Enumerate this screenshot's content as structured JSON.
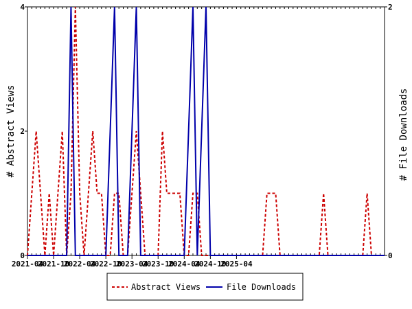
{
  "chart_data": {
    "type": "line",
    "title": "",
    "xlabel": "",
    "ylabel_left": "# Abstract Views",
    "ylabel_right": "# File Downloads",
    "x_start": "2021-04",
    "x_end": "2025-08",
    "x_tick_labels": [
      "2021-04",
      "2021-10",
      "2022-04",
      "2022-10",
      "2023-04",
      "2023-10",
      "2024-04",
      "2024-10",
      "2025-04"
    ],
    "ylim_left": [
      0,
      4
    ],
    "yticks_left": [
      "0",
      "2",
      "4"
    ],
    "ylim_right": [
      0,
      2
    ],
    "yticks_right": [
      "0",
      "2"
    ],
    "legend_position": "bottom-center",
    "series": [
      {
        "name": "Abstract Views",
        "axis": "left",
        "color": "#cc0000",
        "style": "dashed",
        "values": [
          0,
          1,
          2,
          1,
          0,
          1,
          0,
          1,
          2,
          0,
          1,
          4,
          1,
          0,
          1,
          2,
          1,
          1,
          0,
          0,
          1,
          1,
          0,
          0,
          1,
          2,
          1,
          0,
          0,
          0,
          0,
          2,
          1,
          1,
          1,
          1,
          0,
          0,
          1,
          1,
          0,
          0,
          0,
          0,
          0,
          0,
          0,
          0,
          0,
          0,
          0,
          0,
          0,
          0,
          0,
          1,
          1,
          1,
          0,
          0,
          0,
          0,
          0,
          0,
          0,
          0,
          0,
          0,
          1,
          0,
          0,
          0,
          0,
          0,
          0,
          0,
          0,
          0,
          1,
          0,
          0,
          0,
          0
        ]
      },
      {
        "name": "File Downloads",
        "axis": "right",
        "color": "#0000aa",
        "style": "solid",
        "values": [
          0,
          0,
          0,
          0,
          0,
          0,
          0,
          0,
          0,
          0,
          2,
          0,
          0,
          0,
          0,
          0,
          0,
          0,
          0,
          1,
          2,
          0,
          0,
          0,
          1,
          2,
          0,
          0,
          0,
          0,
          0,
          0,
          0,
          0,
          0,
          0,
          0,
          1,
          2,
          0,
          1,
          2,
          0,
          0,
          0,
          0,
          0,
          0,
          0,
          0,
          0,
          0,
          0,
          0,
          0,
          0,
          0,
          0,
          0,
          0,
          0,
          0,
          0,
          0,
          0,
          0,
          0,
          0,
          0,
          0,
          0,
          0,
          0,
          0,
          0,
          0,
          0,
          0,
          0,
          0,
          0,
          0,
          0
        ]
      }
    ]
  }
}
